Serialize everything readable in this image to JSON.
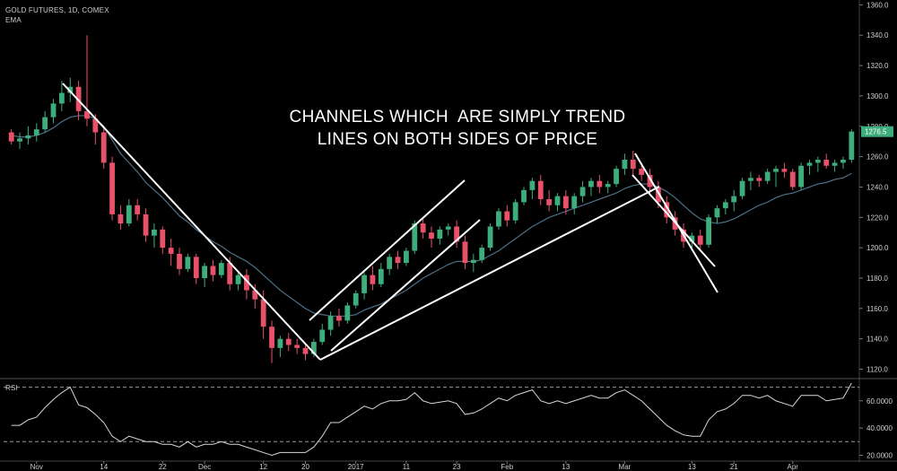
{
  "header": {
    "symbol_line": "GOLD FUTURES, 1D, COMEX",
    "indicator": "EMA"
  },
  "annotation": {
    "line1": "CHANNELS WHICH  ARE SIMPLY TREND",
    "line2": "LINES ON BOTH SIDES OF PRICE"
  },
  "rsi_panel": {
    "label": "RSI"
  },
  "price_badge": "1276.5",
  "colors": {
    "up": "#3dae7b",
    "down": "#e8516a",
    "ema": "#4e6f86",
    "rsi": "#d8d8d8",
    "trendline": "#ffffff",
    "axis_text": "#cfcfcf"
  },
  "chart_data": [
    {
      "type": "candlestick",
      "title": "GOLD FUTURES, 1D, COMEX",
      "y_axis_ticks": [
        "1120.0",
        "1140.0",
        "1160.0",
        "1180.0",
        "1200.0",
        "1220.0",
        "1240.0",
        "1260.0",
        "1280.0",
        "1300.0",
        "1320.0",
        "1340.0",
        "1360.0"
      ],
      "ylim": [
        1115,
        1362
      ],
      "x_tick_labels": [
        "Nov",
        "14",
        "22",
        "Dec",
        "12",
        "20",
        "2017",
        "11",
        "23",
        "Feb",
        "13",
        "Mar",
        "13",
        "21",
        "Apr"
      ],
      "last_price": 1276.5,
      "candles": [
        [
          1276,
          1278,
          1268,
          1270
        ],
        [
          1270,
          1276,
          1265,
          1272
        ],
        [
          1272,
          1280,
          1268,
          1274
        ],
        [
          1274,
          1282,
          1270,
          1278
        ],
        [
          1278,
          1290,
          1276,
          1286
        ],
        [
          1286,
          1298,
          1282,
          1295
        ],
        [
          1295,
          1310,
          1290,
          1302
        ],
        [
          1302,
          1312,
          1296,
          1306
        ],
        [
          1306,
          1310,
          1284,
          1290
        ],
        [
          1290,
          1340,
          1280,
          1285
        ],
        [
          1285,
          1288,
          1268,
          1276
        ],
        [
          1276,
          1280,
          1252,
          1256
        ],
        [
          1256,
          1260,
          1218,
          1222
        ],
        [
          1222,
          1228,
          1212,
          1216
        ],
        [
          1216,
          1232,
          1214,
          1228
        ],
        [
          1228,
          1232,
          1218,
          1222
        ],
        [
          1222,
          1226,
          1204,
          1208
        ],
        [
          1208,
          1216,
          1200,
          1212
        ],
        [
          1212,
          1214,
          1196,
          1200
        ],
        [
          1200,
          1206,
          1188,
          1196
        ],
        [
          1196,
          1200,
          1182,
          1186
        ],
        [
          1186,
          1196,
          1184,
          1194
        ],
        [
          1194,
          1196,
          1176,
          1180
        ],
        [
          1180,
          1190,
          1174,
          1188
        ],
        [
          1188,
          1192,
          1178,
          1182
        ],
        [
          1182,
          1192,
          1180,
          1190
        ],
        [
          1190,
          1194,
          1172,
          1176
        ],
        [
          1176,
          1184,
          1172,
          1182
        ],
        [
          1182,
          1186,
          1166,
          1172
        ],
        [
          1172,
          1176,
          1160,
          1166
        ],
        [
          1166,
          1172,
          1140,
          1148
        ],
        [
          1148,
          1152,
          1124,
          1134
        ],
        [
          1134,
          1142,
          1128,
          1140
        ],
        [
          1140,
          1144,
          1132,
          1136
        ],
        [
          1136,
          1140,
          1130,
          1134
        ],
        [
          1134,
          1136,
          1126,
          1130
        ],
        [
          1130,
          1140,
          1128,
          1138
        ],
        [
          1138,
          1150,
          1136,
          1146
        ],
        [
          1146,
          1158,
          1142,
          1155
        ],
        [
          1155,
          1160,
          1148,
          1152
        ],
        [
          1152,
          1164,
          1150,
          1162
        ],
        [
          1162,
          1172,
          1160,
          1170
        ],
        [
          1170,
          1184,
          1166,
          1182
        ],
        [
          1182,
          1188,
          1172,
          1176
        ],
        [
          1176,
          1190,
          1174,
          1186
        ],
        [
          1186,
          1196,
          1182,
          1194
        ],
        [
          1194,
          1198,
          1186,
          1190
        ],
        [
          1190,
          1200,
          1188,
          1198
        ],
        [
          1198,
          1218,
          1196,
          1216
        ],
        [
          1216,
          1220,
          1206,
          1210
        ],
        [
          1210,
          1214,
          1200,
          1206
        ],
        [
          1206,
          1214,
          1202,
          1212
        ],
        [
          1212,
          1216,
          1208,
          1214
        ],
        [
          1214,
          1218,
          1200,
          1204
        ],
        [
          1204,
          1208,
          1186,
          1190
        ],
        [
          1190,
          1196,
          1184,
          1192
        ],
        [
          1192,
          1202,
          1190,
          1200
        ],
        [
          1200,
          1216,
          1198,
          1214
        ],
        [
          1214,
          1226,
          1212,
          1224
        ],
        [
          1224,
          1228,
          1214,
          1218
        ],
        [
          1218,
          1232,
          1216,
          1230
        ],
        [
          1230,
          1240,
          1228,
          1238
        ],
        [
          1238,
          1246,
          1232,
          1244
        ],
        [
          1244,
          1248,
          1228,
          1232
        ],
        [
          1232,
          1238,
          1224,
          1228
        ],
        [
          1228,
          1236,
          1224,
          1234
        ],
        [
          1234,
          1238,
          1222,
          1226
        ],
        [
          1226,
          1236,
          1222,
          1234
        ],
        [
          1234,
          1244,
          1230,
          1240
        ],
        [
          1240,
          1246,
          1234,
          1244
        ],
        [
          1244,
          1248,
          1236,
          1240
        ],
        [
          1240,
          1244,
          1236,
          1242
        ],
        [
          1242,
          1254,
          1240,
          1252
        ],
        [
          1252,
          1262,
          1248,
          1258
        ],
        [
          1258,
          1264,
          1248,
          1252
        ],
        [
          1252,
          1256,
          1244,
          1248
        ],
        [
          1248,
          1252,
          1236,
          1240
        ],
        [
          1240,
          1244,
          1226,
          1230
        ],
        [
          1230,
          1234,
          1216,
          1220
        ],
        [
          1220,
          1224,
          1208,
          1212
        ],
        [
          1212,
          1216,
          1200,
          1204
        ],
        [
          1204,
          1210,
          1198,
          1208
        ],
        [
          1208,
          1212,
          1198,
          1202
        ],
        [
          1202,
          1222,
          1200,
          1220
        ],
        [
          1220,
          1228,
          1216,
          1226
        ],
        [
          1226,
          1232,
          1222,
          1230
        ],
        [
          1230,
          1238,
          1224,
          1234
        ],
        [
          1234,
          1246,
          1232,
          1244
        ],
        [
          1244,
          1250,
          1238,
          1246
        ],
        [
          1246,
          1248,
          1240,
          1244
        ],
        [
          1244,
          1252,
          1242,
          1250
        ],
        [
          1250,
          1254,
          1240,
          1252
        ],
        [
          1252,
          1256,
          1246,
          1250
        ],
        [
          1250,
          1252,
          1238,
          1240
        ],
        [
          1240,
          1256,
          1238,
          1254
        ],
        [
          1254,
          1258,
          1248,
          1256
        ],
        [
          1256,
          1260,
          1250,
          1258
        ],
        [
          1258,
          1262,
          1252,
          1254
        ],
        [
          1254,
          1258,
          1250,
          1256
        ],
        [
          1256,
          1260,
          1252,
          1258
        ],
        [
          1258,
          1278,
          1256,
          1276.5
        ]
      ],
      "ema": [
        1274,
        1273,
        1273,
        1274,
        1276,
        1279,
        1283,
        1286,
        1287,
        1287,
        1285,
        1280,
        1271,
        1262,
        1256,
        1250,
        1243,
        1238,
        1233,
        1227,
        1221,
        1217,
        1212,
        1208,
        1204,
        1201,
        1197,
        1194,
        1191,
        1187,
        1182,
        1177,
        1172,
        1168,
        1164,
        1160,
        1157,
        1156,
        1155,
        1155,
        1155,
        1156,
        1159,
        1161,
        1163,
        1166,
        1169,
        1172,
        1176,
        1180,
        1183,
        1186,
        1189,
        1191,
        1191,
        1191,
        1192,
        1195,
        1198,
        1202,
        1206,
        1210,
        1214,
        1217,
        1220,
        1222,
        1224,
        1226,
        1228,
        1230,
        1232,
        1234,
        1236,
        1239,
        1241,
        1242,
        1242,
        1240,
        1237,
        1233,
        1228,
        1223,
        1219,
        1217,
        1216,
        1217,
        1219,
        1222,
        1225,
        1228,
        1230,
        1233,
        1235,
        1236,
        1238,
        1240,
        1242,
        1243,
        1245,
        1246,
        1249
      ]
    },
    {
      "type": "line",
      "title": "RSI",
      "y_axis_ticks": [
        "20.0000",
        "40.0000",
        "60.0000"
      ],
      "ylim": [
        17,
        75
      ],
      "levels": [
        70,
        30
      ],
      "values": [
        42,
        42,
        46,
        48,
        55,
        61,
        66,
        70,
        57,
        55,
        50,
        44,
        34,
        30,
        34,
        32,
        30,
        30,
        28,
        28,
        26,
        30,
        26,
        28,
        28,
        30,
        28,
        28,
        26,
        24,
        22,
        20,
        22,
        22,
        22,
        22,
        26,
        34,
        44,
        44,
        48,
        52,
        56,
        54,
        58,
        60,
        60,
        61,
        66,
        60,
        58,
        59,
        60,
        58,
        50,
        51,
        54,
        58,
        62,
        60,
        64,
        66,
        68,
        60,
        58,
        60,
        58,
        60,
        62,
        64,
        62,
        62,
        66,
        68,
        64,
        60,
        54,
        48,
        42,
        38,
        35,
        34,
        34,
        46,
        52,
        54,
        58,
        64,
        64,
        62,
        64,
        60,
        58,
        56,
        64,
        64,
        64,
        60,
        61,
        62,
        73
      ]
    }
  ]
}
